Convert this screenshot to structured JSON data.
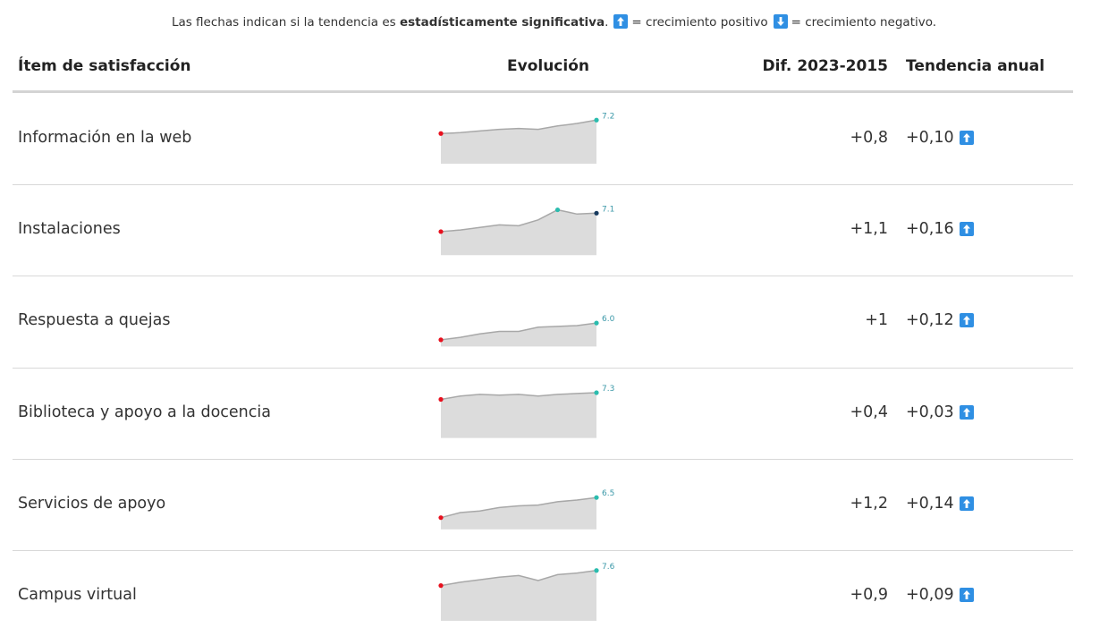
{
  "note": {
    "text": "Las flechas indican si la tendencia es",
    "bold": "estadísticamente significativa",
    "end": ".",
    "positive": "= crecimiento positivo",
    "negative": "= crecimiento negativo."
  },
  "header": [
    "Ítem de satisfacción",
    "Evolución",
    "Dif. 2023-2015",
    "Tendencia anual"
  ],
  "sparkline": {
    "ylim": [
      4.6,
      7.8
    ],
    "line_color": "#a8a8a8",
    "area_color": "#dcdcdc",
    "first_color": "#e8101e",
    "max_color": "#2bbcae",
    "last_color": "#173a5e",
    "label_color": "#3b98a8"
  },
  "arrow_color": "#2f8fe3",
  "rows": [
    {
      "label": "Información en la web",
      "values": [
        6.4,
        6.45,
        6.55,
        6.65,
        6.7,
        6.65,
        6.85,
        7.0,
        7.2
      ],
      "value_label": "7.2",
      "diff": "+0,8",
      "trend": "+0,10",
      "arrow": "up"
    },
    {
      "label": "Instalaciones",
      "values": [
        6.0,
        6.1,
        6.25,
        6.4,
        6.35,
        6.7,
        7.3,
        7.05,
        7.1
      ],
      "value_label": "7.1",
      "diff": "+1,1",
      "trend": "+0,16",
      "arrow": "up"
    },
    {
      "label": "Respuesta a quejas",
      "values": [
        5.0,
        5.15,
        5.35,
        5.5,
        5.5,
        5.75,
        5.8,
        5.85,
        6.0
      ],
      "value_label": "6.0",
      "diff": "+1",
      "trend": "+0,12",
      "arrow": "up"
    },
    {
      "label": "Biblioteca y apoyo a la docencia",
      "values": [
        6.9,
        7.1,
        7.2,
        7.15,
        7.2,
        7.1,
        7.2,
        7.25,
        7.3
      ],
      "value_label": "7.3",
      "diff": "+0,4",
      "trend": "+0,03",
      "arrow": "up"
    },
    {
      "label": "Servicios de apoyo",
      "values": [
        5.3,
        5.6,
        5.7,
        5.9,
        6.0,
        6.05,
        6.25,
        6.35,
        6.5
      ],
      "value_label": "6.5",
      "diff": "+1,2",
      "trend": "+0,14",
      "arrow": "up"
    },
    {
      "label": "Campus virtual",
      "values": [
        6.7,
        6.9,
        7.05,
        7.2,
        7.3,
        7.0,
        7.35,
        7.45,
        7.6
      ],
      "value_label": "7.6",
      "diff": "+0,9",
      "trend": "+0,09",
      "arrow": "up"
    }
  ]
}
